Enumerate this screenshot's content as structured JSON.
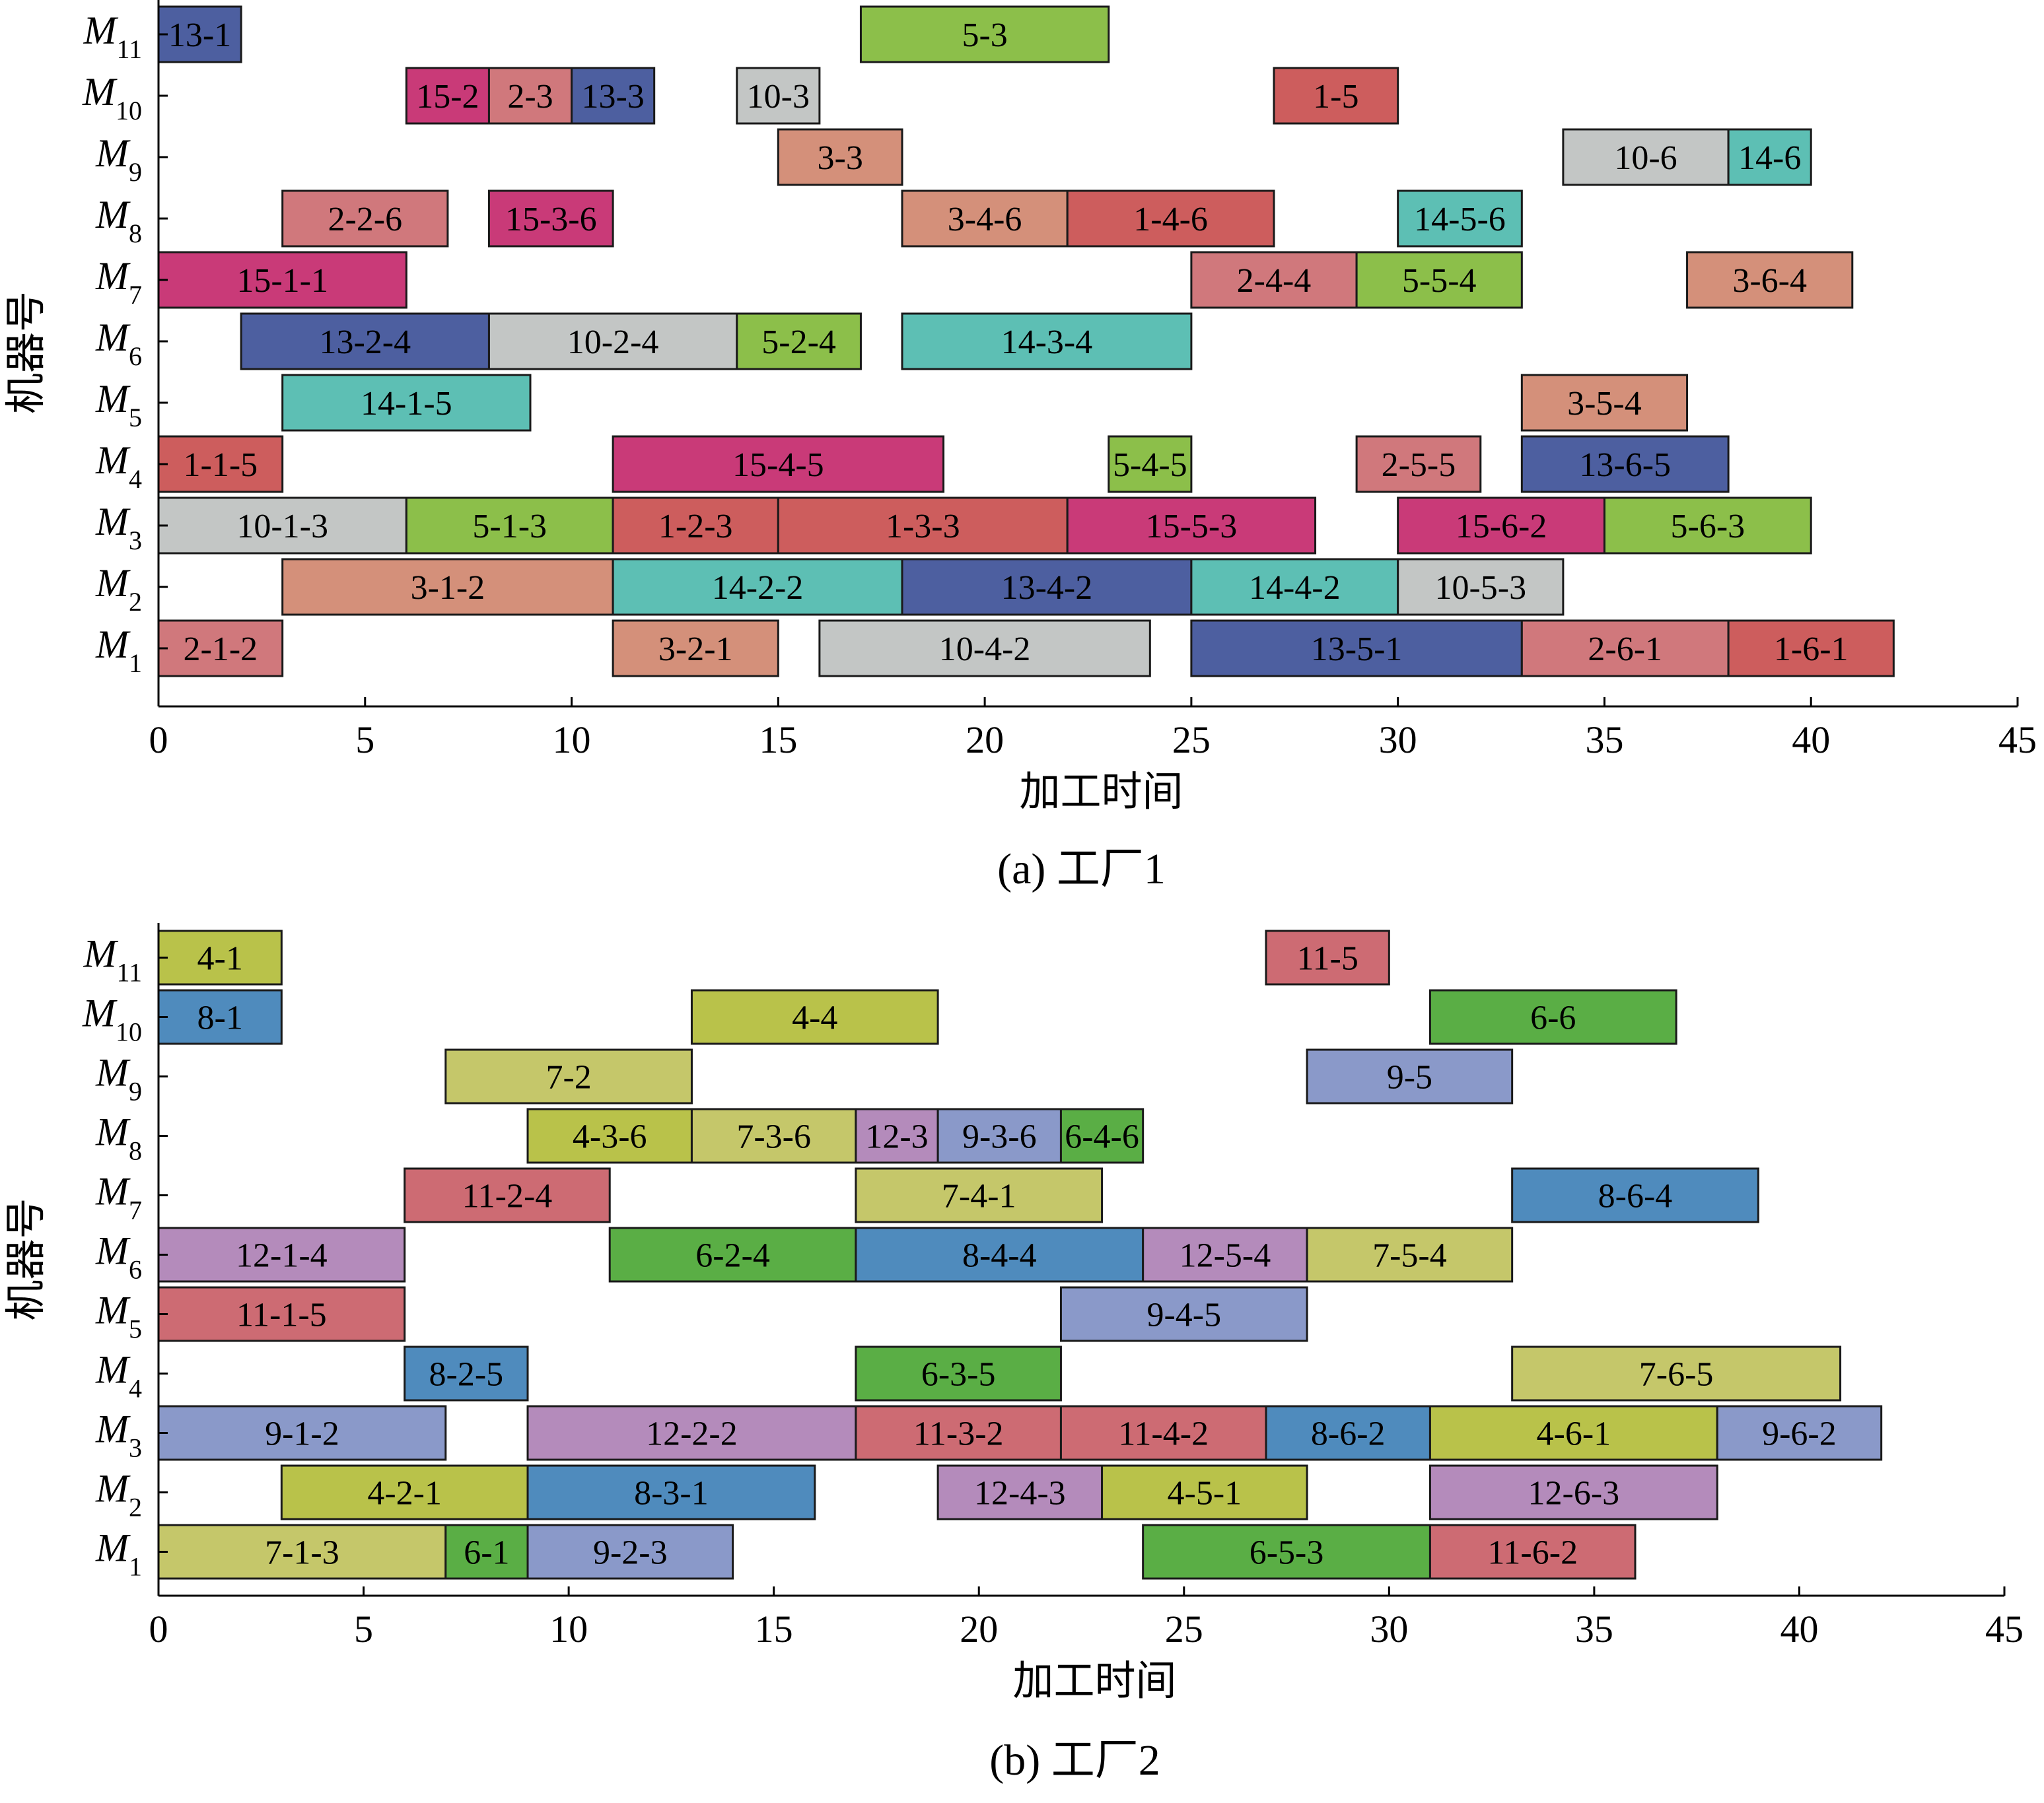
{
  "chart_data": [
    {
      "type": "gantt",
      "caption": "(a) 工厂1",
      "xlabel": "加工时间",
      "ylabel": "机器号",
      "xlim": [
        0,
        45
      ],
      "xticks": [
        0,
        5,
        10,
        15,
        20,
        25,
        30,
        35,
        40,
        45
      ],
      "machines": [
        {
          "letter": "M",
          "sub": "1"
        },
        {
          "letter": "M",
          "sub": "2"
        },
        {
          "letter": "M",
          "sub": "3"
        },
        {
          "letter": "M",
          "sub": "4"
        },
        {
          "letter": "M",
          "sub": "5"
        },
        {
          "letter": "M",
          "sub": "6"
        },
        {
          "letter": "M",
          "sub": "7"
        },
        {
          "letter": "M",
          "sub": "8"
        },
        {
          "letter": "M",
          "sub": "9"
        },
        {
          "letter": "M",
          "sub": "10"
        },
        {
          "letter": "M",
          "sub": "11"
        }
      ],
      "tasks": [
        {
          "machine": 11,
          "start": 0,
          "end": 2,
          "label": "13-1",
          "color": "#4d5fa0"
        },
        {
          "machine": 11,
          "start": 17,
          "end": 23,
          "label": "5-3",
          "color": "#8cbf4a"
        },
        {
          "machine": 10,
          "start": 6,
          "end": 8,
          "label": "15-2",
          "color": "#c93a78"
        },
        {
          "machine": 10,
          "start": 8,
          "end": 10,
          "label": "2-3",
          "color": "#d0787c"
        },
        {
          "machine": 10,
          "start": 10,
          "end": 12,
          "label": "13-3",
          "color": "#4d5fa0"
        },
        {
          "machine": 10,
          "start": 14,
          "end": 16,
          "label": "10-3",
          "color": "#c3c6c5"
        },
        {
          "machine": 10,
          "start": 27,
          "end": 30,
          "label": "1-5",
          "color": "#cd5d5d"
        },
        {
          "machine": 9,
          "start": 15,
          "end": 18,
          "label": "3-3",
          "color": "#d4907a"
        },
        {
          "machine": 9,
          "start": 34,
          "end": 38,
          "label": "10-6",
          "color": "#c3c6c5"
        },
        {
          "machine": 9,
          "start": 38,
          "end": 40,
          "label": "14-6",
          "color": "#5dbfb4"
        },
        {
          "machine": 8,
          "start": 3,
          "end": 7,
          "label": "2-2-6",
          "color": "#d0787c"
        },
        {
          "machine": 8,
          "start": 8,
          "end": 11,
          "label": "15-3-6",
          "color": "#c93a78"
        },
        {
          "machine": 8,
          "start": 18,
          "end": 22,
          "label": "3-4-6",
          "color": "#d4907a"
        },
        {
          "machine": 8,
          "start": 22,
          "end": 27,
          "label": "1-4-6",
          "color": "#cd5d5d"
        },
        {
          "machine": 8,
          "start": 30,
          "end": 33,
          "label": "14-5-6",
          "color": "#5dbfb4"
        },
        {
          "machine": 7,
          "start": 0,
          "end": 6,
          "label": "15-1-1",
          "color": "#c93a78"
        },
        {
          "machine": 7,
          "start": 25,
          "end": 29,
          "label": "2-4-4",
          "color": "#d0787c"
        },
        {
          "machine": 7,
          "start": 29,
          "end": 33,
          "label": "5-5-4",
          "color": "#8cbf4a"
        },
        {
          "machine": 7,
          "start": 37,
          "end": 41,
          "label": "3-6-4",
          "color": "#d4907a"
        },
        {
          "machine": 6,
          "start": 2,
          "end": 8,
          "label": "13-2-4",
          "color": "#4d5fa0"
        },
        {
          "machine": 6,
          "start": 8,
          "end": 14,
          "label": "10-2-4",
          "color": "#c3c6c5"
        },
        {
          "machine": 6,
          "start": 14,
          "end": 17,
          "label": "5-2-4",
          "color": "#8cbf4a"
        },
        {
          "machine": 6,
          "start": 18,
          "end": 25,
          "label": "14-3-4",
          "color": "#5dbfb4"
        },
        {
          "machine": 5,
          "start": 3,
          "end": 9,
          "label": "14-1-5",
          "color": "#5dbfb4"
        },
        {
          "machine": 5,
          "start": 33,
          "end": 37,
          "label": "3-5-4",
          "color": "#d4907a"
        },
        {
          "machine": 4,
          "start": 0,
          "end": 3,
          "label": "1-1-5",
          "color": "#cd5d5d"
        },
        {
          "machine": 4,
          "start": 11,
          "end": 19,
          "label": "15-4-5",
          "color": "#c93a78"
        },
        {
          "machine": 4,
          "start": 23,
          "end": 25,
          "label": "5-4-5",
          "color": "#8cbf4a"
        },
        {
          "machine": 4,
          "start": 29,
          "end": 32,
          "label": "2-5-5",
          "color": "#d0787c"
        },
        {
          "machine": 4,
          "start": 33,
          "end": 38,
          "label": "13-6-5",
          "color": "#4d5fa0"
        },
        {
          "machine": 3,
          "start": 0,
          "end": 6,
          "label": "10-1-3",
          "color": "#c3c6c5"
        },
        {
          "machine": 3,
          "start": 6,
          "end": 11,
          "label": "5-1-3",
          "color": "#8cbf4a"
        },
        {
          "machine": 3,
          "start": 11,
          "end": 15,
          "label": "1-2-3",
          "color": "#cd5d5d"
        },
        {
          "machine": 3,
          "start": 15,
          "end": 22,
          "label": "1-3-3",
          "color": "#cd5d5d"
        },
        {
          "machine": 3,
          "start": 22,
          "end": 28,
          "label": "15-5-3",
          "color": "#c93a78"
        },
        {
          "machine": 3,
          "start": 30,
          "end": 35,
          "label": "15-6-2",
          "color": "#c93a78"
        },
        {
          "machine": 3,
          "start": 35,
          "end": 40,
          "label": "5-6-3",
          "color": "#8cbf4a"
        },
        {
          "machine": 2,
          "start": 3,
          "end": 11,
          "label": "3-1-2",
          "color": "#d4907a"
        },
        {
          "machine": 2,
          "start": 11,
          "end": 18,
          "label": "14-2-2",
          "color": "#5dbfb4"
        },
        {
          "machine": 2,
          "start": 18,
          "end": 25,
          "label": "13-4-2",
          "color": "#4d5fa0"
        },
        {
          "machine": 2,
          "start": 25,
          "end": 30,
          "label": "14-4-2",
          "color": "#5dbfb4"
        },
        {
          "machine": 2,
          "start": 30,
          "end": 34,
          "label": "10-5-3",
          "color": "#c3c6c5"
        },
        {
          "machine": 1,
          "start": 0,
          "end": 3,
          "label": "2-1-2",
          "color": "#d0787c"
        },
        {
          "machine": 1,
          "start": 11,
          "end": 15,
          "label": "3-2-1",
          "color": "#d4907a"
        },
        {
          "machine": 1,
          "start": 16,
          "end": 24,
          "label": "10-4-2",
          "color": "#c3c6c5"
        },
        {
          "machine": 1,
          "start": 25,
          "end": 33,
          "label": "13-5-1",
          "color": "#4d5fa0"
        },
        {
          "machine": 1,
          "start": 33,
          "end": 38,
          "label": "2-6-1",
          "color": "#d0787c"
        },
        {
          "machine": 1,
          "start": 38,
          "end": 42,
          "label": "1-6-1",
          "color": "#cd5d5d"
        }
      ]
    },
    {
      "type": "gantt",
      "caption": "(b) 工厂2",
      "xlabel": "加工时间",
      "ylabel": "机器号",
      "xlim": [
        0,
        45
      ],
      "xticks": [
        0,
        5,
        10,
        15,
        20,
        25,
        30,
        35,
        40,
        45
      ],
      "machines": [
        {
          "letter": "M",
          "sub": "1"
        },
        {
          "letter": "M",
          "sub": "2"
        },
        {
          "letter": "M",
          "sub": "3"
        },
        {
          "letter": "M",
          "sub": "4"
        },
        {
          "letter": "M",
          "sub": "5"
        },
        {
          "letter": "M",
          "sub": "6"
        },
        {
          "letter": "M",
          "sub": "7"
        },
        {
          "letter": "M",
          "sub": "8"
        },
        {
          "letter": "M",
          "sub": "9"
        },
        {
          "letter": "M",
          "sub": "10"
        },
        {
          "letter": "M",
          "sub": "11"
        }
      ],
      "tasks": [
        {
          "machine": 11,
          "start": 0,
          "end": 3,
          "label": "4-1",
          "color": "#b9c24a"
        },
        {
          "machine": 11,
          "start": 27,
          "end": 30,
          "label": "11-5",
          "color": "#cd6b73"
        },
        {
          "machine": 10,
          "start": 0,
          "end": 3,
          "label": "8-1",
          "color": "#4f8bbd"
        },
        {
          "machine": 10,
          "start": 13,
          "end": 19,
          "label": "4-4",
          "color": "#b9c24a"
        },
        {
          "machine": 10,
          "start": 31,
          "end": 37,
          "label": "6-6",
          "color": "#5aae45"
        },
        {
          "machine": 9,
          "start": 7,
          "end": 13,
          "label": "7-2",
          "color": "#c5c76a"
        },
        {
          "machine": 9,
          "start": 28,
          "end": 33,
          "label": "9-5",
          "color": "#8a99c9"
        },
        {
          "machine": 8,
          "start": 9,
          "end": 13,
          "label": "4-3-6",
          "color": "#b9c24a"
        },
        {
          "machine": 8,
          "start": 13,
          "end": 17,
          "label": "7-3-6",
          "color": "#c5c76a"
        },
        {
          "machine": 8,
          "start": 17,
          "end": 19,
          "label": "12-3",
          "color": "#b48bbb"
        },
        {
          "machine": 8,
          "start": 19,
          "end": 22,
          "label": "9-3-6",
          "color": "#8a99c9"
        },
        {
          "machine": 8,
          "start": 22,
          "end": 24,
          "label": "6-4-6",
          "color": "#5aae45"
        },
        {
          "machine": 7,
          "start": 6,
          "end": 11,
          "label": "11-2-4",
          "color": "#cd6b73"
        },
        {
          "machine": 7,
          "start": 17,
          "end": 23,
          "label": "7-4-1",
          "color": "#c5c76a"
        },
        {
          "machine": 7,
          "start": 33,
          "end": 39,
          "label": "8-6-4",
          "color": "#4f8bbd"
        },
        {
          "machine": 6,
          "start": 0,
          "end": 6,
          "label": "12-1-4",
          "color": "#b48bbb"
        },
        {
          "machine": 6,
          "start": 11,
          "end": 17,
          "label": "6-2-4",
          "color": "#5aae45"
        },
        {
          "machine": 6,
          "start": 17,
          "end": 24,
          "label": "8-4-4",
          "color": "#4f8bbd"
        },
        {
          "machine": 6,
          "start": 24,
          "end": 28,
          "label": "12-5-4",
          "color": "#b48bbb"
        },
        {
          "machine": 6,
          "start": 28,
          "end": 33,
          "label": "7-5-4",
          "color": "#c5c76a"
        },
        {
          "machine": 5,
          "start": 0,
          "end": 6,
          "label": "11-1-5",
          "color": "#cd6b73"
        },
        {
          "machine": 5,
          "start": 22,
          "end": 28,
          "label": "9-4-5",
          "color": "#8a99c9"
        },
        {
          "machine": 4,
          "start": 6,
          "end": 9,
          "label": "8-2-5",
          "color": "#4f8bbd"
        },
        {
          "machine": 4,
          "start": 17,
          "end": 22,
          "label": "6-3-5",
          "color": "#5aae45"
        },
        {
          "machine": 4,
          "start": 33,
          "end": 41,
          "label": "7-6-5",
          "color": "#c5c76a"
        },
        {
          "machine": 3,
          "start": 0,
          "end": 7,
          "label": "9-1-2",
          "color": "#8a99c9"
        },
        {
          "machine": 3,
          "start": 9,
          "end": 17,
          "label": "12-2-2",
          "color": "#b48bbb"
        },
        {
          "machine": 3,
          "start": 17,
          "end": 22,
          "label": "11-3-2",
          "color": "#cd6b73"
        },
        {
          "machine": 3,
          "start": 22,
          "end": 27,
          "label": "11-4-2",
          "color": "#cd6b73"
        },
        {
          "machine": 3,
          "start": 27,
          "end": 31,
          "label": "8-6-2",
          "color": "#4f8bbd"
        },
        {
          "machine": 3,
          "start": 31,
          "end": 38,
          "label": "4-6-1",
          "color": "#b9c24a"
        },
        {
          "machine": 3,
          "start": 38,
          "end": 42,
          "label": "9-6-2",
          "color": "#8a99c9"
        },
        {
          "machine": 2,
          "start": 3,
          "end": 9,
          "label": "4-2-1",
          "color": "#b9c24a"
        },
        {
          "machine": 2,
          "start": 9,
          "end": 16,
          "label": "8-3-1",
          "color": "#4f8bbd"
        },
        {
          "machine": 2,
          "start": 19,
          "end": 23,
          "label": "12-4-3",
          "color": "#b48bbb"
        },
        {
          "machine": 2,
          "start": 23,
          "end": 28,
          "label": "4-5-1",
          "color": "#b9c24a"
        },
        {
          "machine": 2,
          "start": 31,
          "end": 38,
          "label": "12-6-3",
          "color": "#b48bbb"
        },
        {
          "machine": 1,
          "start": 0,
          "end": 7,
          "label": "7-1-3",
          "color": "#c5c76a"
        },
        {
          "machine": 1,
          "start": 7,
          "end": 9,
          "label": "6-1",
          "color": "#5aae45"
        },
        {
          "machine": 1,
          "start": 9,
          "end": 14,
          "label": "9-2-3",
          "color": "#8a99c9"
        },
        {
          "machine": 1,
          "start": 24,
          "end": 31,
          "label": "6-5-3",
          "color": "#5aae45"
        },
        {
          "machine": 1,
          "start": 31,
          "end": 36,
          "label": "11-6-2",
          "color": "#cd6b73"
        }
      ]
    }
  ]
}
